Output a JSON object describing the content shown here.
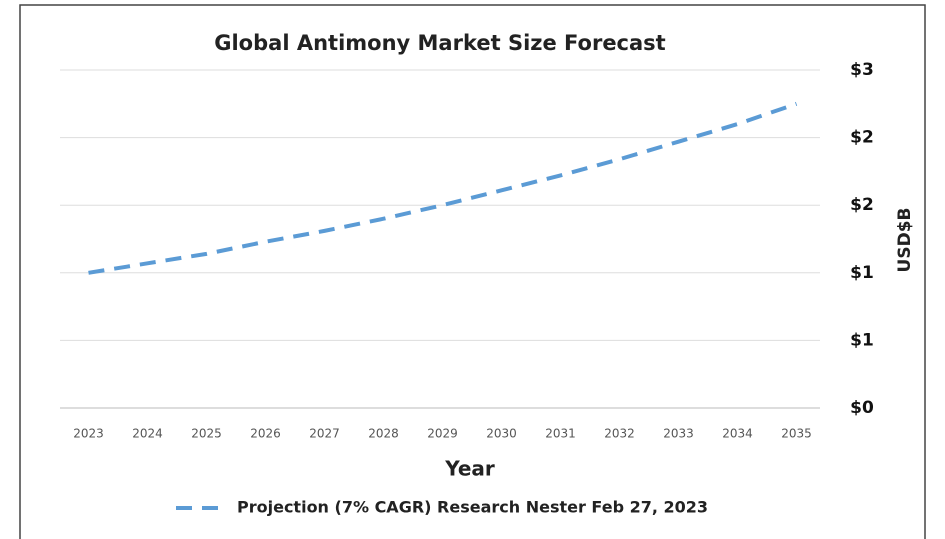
{
  "chart_data": {
    "type": "line",
    "title": "Global Antimony Market Size Forecast",
    "x_label": "Year",
    "y_label": "USD$B",
    "categories": [
      "2023",
      "2024",
      "2025",
      "2026",
      "2027",
      "2028",
      "2029",
      "2030",
      "2031",
      "2032",
      "2033",
      "2034",
      "2035"
    ],
    "series": [
      {
        "name": "Projection (7% CAGR) Research Nester Feb 27, 2023",
        "color": "#5b9bd5",
        "values": [
          1.0,
          1.07,
          1.14,
          1.23,
          1.31,
          1.4,
          1.5,
          1.61,
          1.72,
          1.84,
          1.97,
          2.1,
          2.25
        ]
      }
    ],
    "ylim": [
      0,
      2.5
    ],
    "yticks": [
      {
        "value": 0,
        "label": "$0"
      },
      {
        "value": 0.5,
        "label": "$1"
      },
      {
        "value": 1.0,
        "label": "$1"
      },
      {
        "value": 1.5,
        "label": "$2"
      },
      {
        "value": 2.0,
        "label": "$2"
      },
      {
        "value": 2.5,
        "label": "$3"
      }
    ],
    "grid": true,
    "y_axis_side": "right",
    "legend": "bottom",
    "line_style": "dashed"
  }
}
